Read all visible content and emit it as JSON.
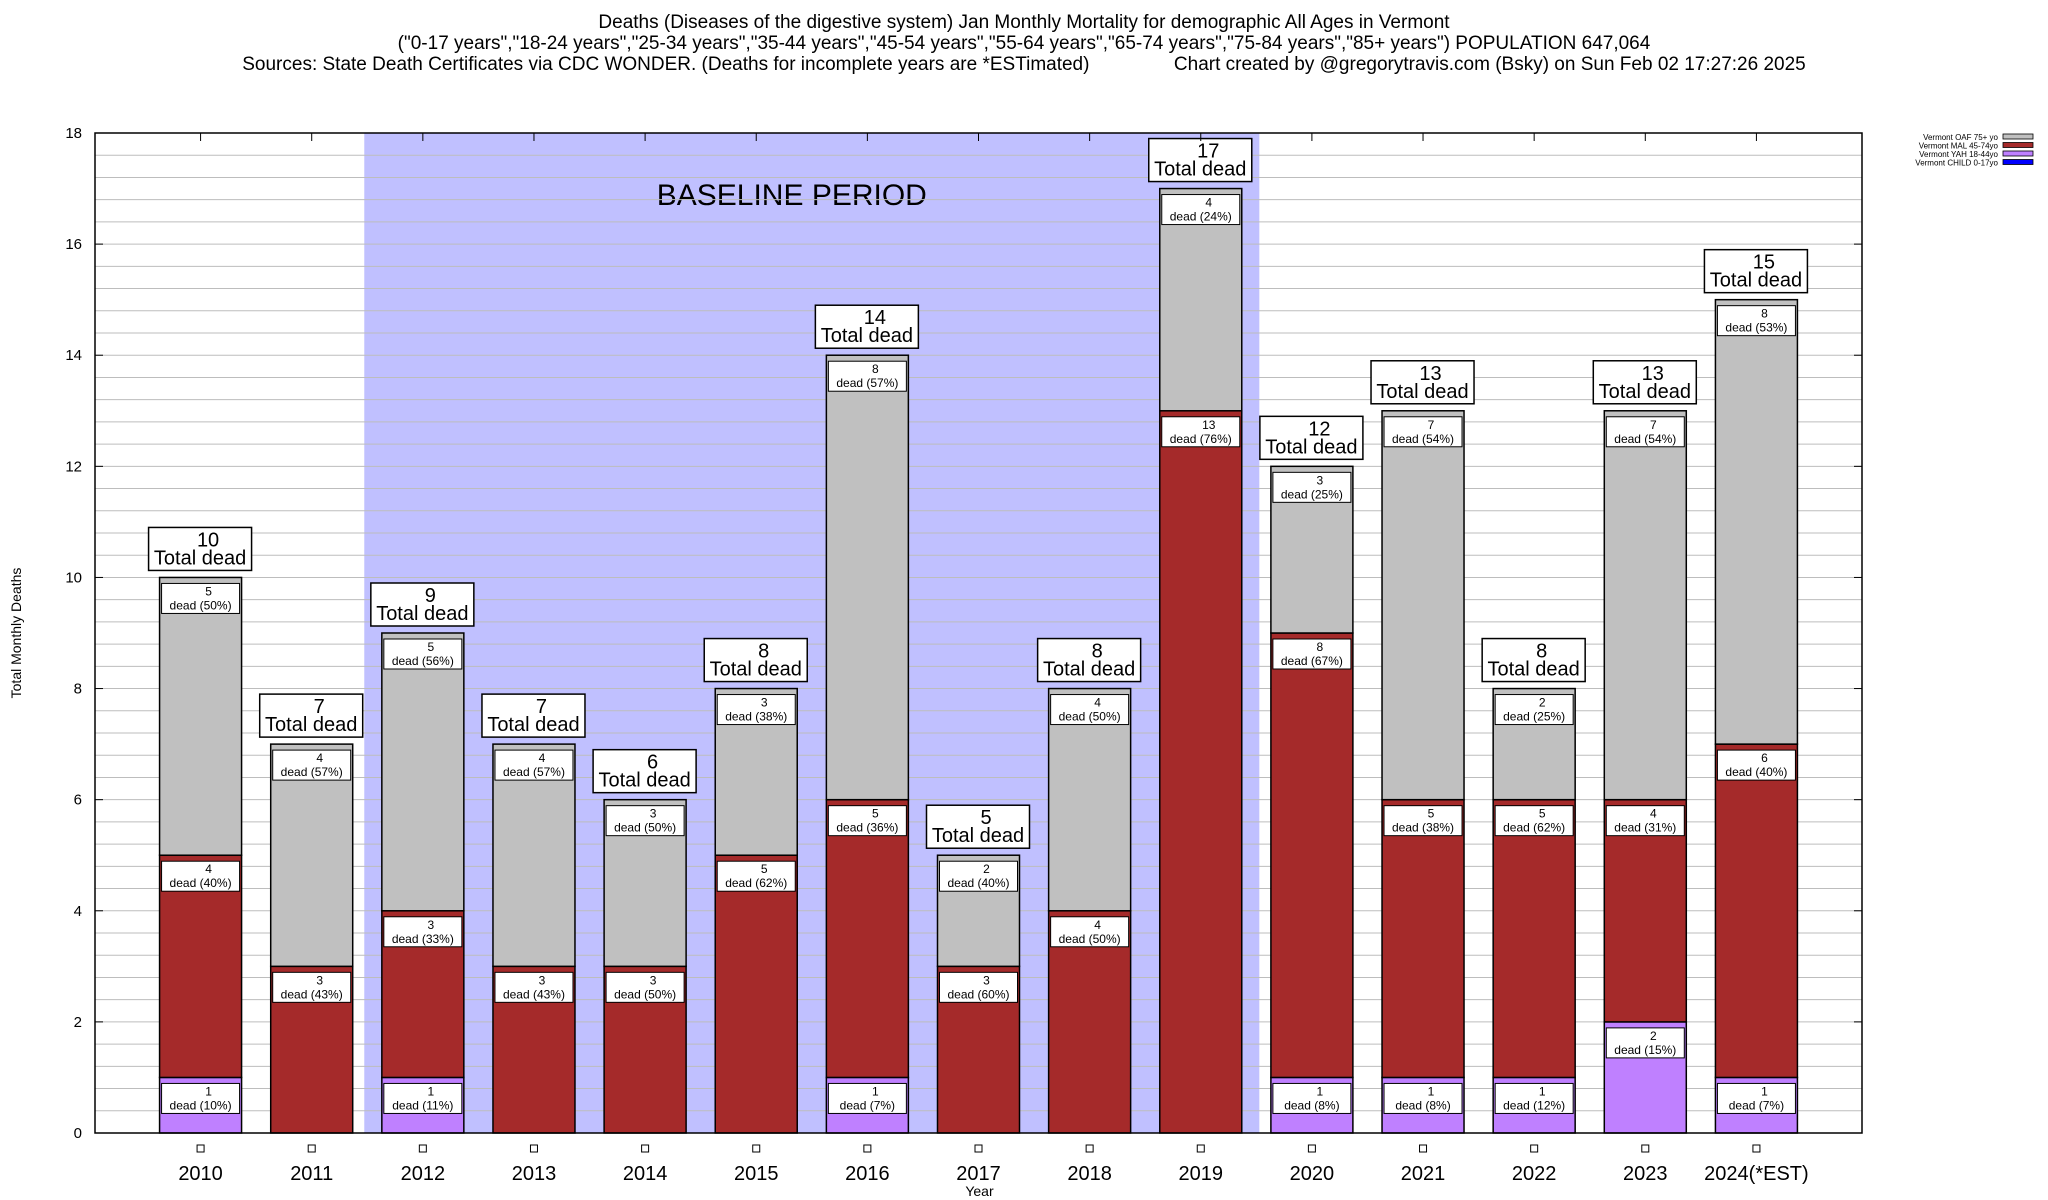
{
  "header": {
    "title_line1": "Deaths (Diseases of the digestive system) Jan Monthly Mortality for demographic All Ages in Vermont",
    "title_line2": "(\"0-17 years\",\"18-24 years\",\"25-34 years\",\"35-44 years\",\"45-54 years\",\"55-64 years\",\"65-74 years\",\"75-84 years\",\"85+ years\") POPULATION 647,064",
    "title_line3": "Sources: State Death Certificates via CDC WONDER. (Deaths for incomplete years are *ESTimated)                Chart created by @gregorytravis.com (Bsky) on Sun Feb 02 17:27:26 2025"
  },
  "chart_data": {
    "type": "bar",
    "stacked": true,
    "title": "Deaths (Diseases of the digestive system) Jan Monthly Mortality for demographic All Ages in Vermont",
    "xlabel": "Year",
    "ylabel": "Total Monthly Deaths",
    "ylim": [
      0,
      18
    ],
    "yticks": [
      0,
      2,
      4,
      6,
      8,
      10,
      12,
      14,
      16,
      18
    ],
    "grid": true,
    "legend_position": "top-right",
    "categories": [
      "2010",
      "2011",
      "2012",
      "2013",
      "2014",
      "2015",
      "2016",
      "2017",
      "2018",
      "2019",
      "2020",
      "2021",
      "2022",
      "2023",
      "2024(*EST)"
    ],
    "series": [
      {
        "name": "Vermont CHILD 0-17yo",
        "color": "#0000ff",
        "values": [
          0,
          0,
          0,
          0,
          0,
          0,
          0,
          0,
          0,
          0,
          0,
          0,
          0,
          0,
          0
        ]
      },
      {
        "name": "Vermont YAH 18-44yo",
        "color": "#bf80ff",
        "values": [
          1,
          0,
          1,
          0,
          0,
          0,
          1,
          0,
          0,
          0,
          1,
          1,
          1,
          2,
          1
        ],
        "percent_labels": [
          "10%",
          "",
          "11%",
          "",
          "",
          "",
          "7%",
          "",
          "",
          "",
          "8%",
          "8%",
          "12%",
          "15%",
          "7%"
        ]
      },
      {
        "name": "Vermont MAL 45-74yo",
        "color": "#a52a2a",
        "values": [
          4,
          3,
          3,
          3,
          3,
          5,
          5,
          3,
          4,
          13,
          8,
          5,
          5,
          4,
          6
        ],
        "percent_labels": [
          "40%",
          "43%",
          "33%",
          "43%",
          "50%",
          "62%",
          "36%",
          "60%",
          "50%",
          "76%",
          "67%",
          "38%",
          "62%",
          "31%",
          "40%"
        ]
      },
      {
        "name": "Vermont OAF 75+ yo",
        "color": "#c0c0c0",
        "values": [
          5,
          4,
          5,
          4,
          3,
          3,
          8,
          2,
          4,
          4,
          3,
          7,
          2,
          7,
          8
        ],
        "percent_labels": [
          "50%",
          "57%",
          "56%",
          "57%",
          "50%",
          "38%",
          "57%",
          "40%",
          "50%",
          "24%",
          "25%",
          "54%",
          "25%",
          "54%",
          "53%"
        ]
      }
    ],
    "totals": [
      10,
      7,
      9,
      7,
      6,
      8,
      14,
      5,
      8,
      17,
      12,
      13,
      8,
      13,
      15
    ],
    "total_label_suffix": "Total dead",
    "segment_label_word": "dead",
    "annotation": {
      "text": "BASELINE PERIOD",
      "from_category": "2012",
      "to_category": "2019",
      "color": "#c0c0ff"
    }
  }
}
